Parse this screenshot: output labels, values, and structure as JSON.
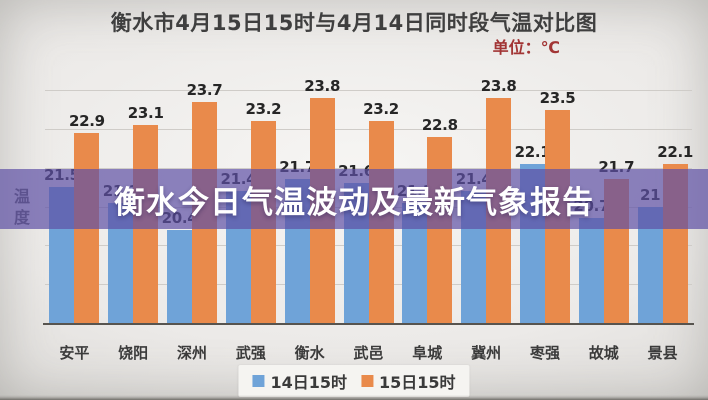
{
  "page": {
    "title": "衡水市4月15日15时与4月14日同时段气温对比图",
    "unit_label": "单位：℃",
    "banner_text": "衡水今日气温波动及最新气象报告",
    "y_axis_title": "温\n度"
  },
  "legend": {
    "series1_label": "14日15时",
    "series2_label": "15日15时"
  },
  "colors": {
    "series1": "#6FA3D8",
    "series2": "#E98A4B",
    "banner": "rgba(94,80,165,0.70)",
    "unit_text": "#A23535",
    "label_text": "#262626"
  },
  "chart_data": {
    "type": "bar",
    "title": "衡水市4月15日15时与4月14日同时段气温对比图",
    "unit": "℃",
    "y_axis_title": "温度",
    "categories": [
      "安平",
      "饶阳",
      "深州",
      "武强",
      "衡水",
      "武邑",
      "阜城",
      "冀州",
      "枣强",
      "故城",
      "景县"
    ],
    "series": [
      {
        "name": "14日15时",
        "color": "#6FA3D8",
        "values": [
          21.5,
          21.1,
          20.4,
          21.4,
          21.7,
          21.6,
          21.1,
          21.4,
          22.1,
          20.7,
          21
        ]
      },
      {
        "name": "15日15时",
        "color": "#E98A4B",
        "values": [
          22.9,
          23.1,
          23.7,
          23.2,
          23.8,
          23.2,
          22.8,
          23.8,
          23.5,
          21.7,
          22.1
        ]
      }
    ],
    "ylim": [
      18,
      24
    ],
    "gridlines": [
      19,
      20,
      21,
      22,
      23,
      24
    ],
    "grid": true,
    "data_labels": true,
    "legend_position": "bottom"
  }
}
